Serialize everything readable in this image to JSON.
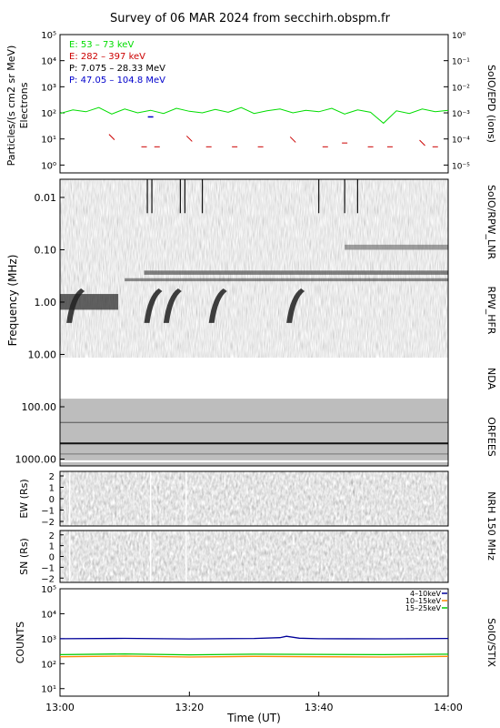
{
  "chart_data": [
    {
      "type": "line",
      "panel": "SoIO/EPD",
      "title": "Survey of 06 MAR 2024 from secchirh.obspm.fr",
      "ylabel_left": "Particles/(s cm2 sr MeV)",
      "ylabel_left2": "Electrons",
      "ylabel_right": "SoIO/EPD  (ions)",
      "scale": "log",
      "ylim_left": [
        0.5,
        100000
      ],
      "ylim_right": [
        5e-06,
        1
      ],
      "left_ticks": [
        "10⁰",
        "10¹",
        "10²",
        "10³",
        "10⁴",
        "10⁵"
      ],
      "right_ticks": [
        "10⁻⁵",
        "10⁻⁴",
        "10⁻³",
        "10⁻²",
        "10⁻¹",
        "10⁰"
      ],
      "legend_position": "top-left",
      "series": [
        {
          "name": "E: 53 – 73 keV",
          "color": "#00dd00",
          "x": [
            "13:00",
            "13:02",
            "13:04",
            "13:06",
            "13:08",
            "13:10",
            "13:12",
            "13:14",
            "13:16",
            "13:18",
            "13:20",
            "13:22",
            "13:24",
            "13:26",
            "13:28",
            "13:30",
            "13:32",
            "13:34",
            "13:36",
            "13:38",
            "13:40",
            "13:42",
            "13:44",
            "13:46",
            "13:48",
            "13:50",
            "13:52",
            "13:54",
            "13:56",
            "13:58",
            "14:00"
          ],
          "values": [
            95,
            130,
            110,
            160,
            90,
            140,
            100,
            125,
            95,
            150,
            115,
            100,
            135,
            105,
            160,
            95,
            120,
            140,
            100,
            125,
            110,
            150,
            90,
            130,
            105,
            40,
            120,
            95,
            140,
            110,
            125
          ]
        },
        {
          "name": "E: 282 – 397 keV",
          "color": "#cc0000",
          "x": [
            "13:08",
            "13:13",
            "13:15",
            "13:20",
            "13:23",
            "13:27",
            "13:31",
            "13:36",
            "13:41",
            "13:44",
            "13:48",
            "13:51",
            "13:56",
            "13:58"
          ],
          "values": [
            15,
            5,
            5,
            13,
            5,
            5,
            5,
            12,
            5,
            7,
            5,
            5,
            9,
            5
          ]
        },
        {
          "name": "P: 7.075 – 28.33 MeV",
          "color": "#000000",
          "x": [],
          "values": []
        },
        {
          "name": "P: 47.05 – 104.8 MeV",
          "color": "#0000cc",
          "x": [
            "13:14"
          ],
          "values": [
            0.0007
          ]
        }
      ]
    },
    {
      "type": "heatmap",
      "panel": "SoIO/RPW_LNR / RPW_HFR / NDA / ORFEES",
      "ylabel": "Frequency  (MHz)",
      "scale": "log",
      "ylim": [
        0.0045,
        1350
      ],
      "yticks": [
        "0.01",
        "0.10",
        "1.00",
        "10.00",
        "100.00",
        "1000.00"
      ],
      "right_labels": [
        "SoIO/RPW_LNR",
        "RPW_HFR",
        "NDA",
        "ORFEES"
      ],
      "bursts_start_min": [
        1,
        13,
        16,
        23,
        35
      ]
    },
    {
      "type": "heatmap",
      "panel": "NRH EW",
      "ylabel": "EW (Rs)",
      "ylim": [
        -2.4,
        2.4
      ],
      "yticks": [
        "2",
        "1",
        "0",
        "−1",
        "−2"
      ],
      "right_label": "NRH  150  MHz"
    },
    {
      "type": "heatmap",
      "panel": "NRH SN",
      "ylabel": "SN (Rs)",
      "ylim": [
        -2.4,
        2.4
      ],
      "yticks": [
        "2",
        "1",
        "0",
        "−1",
        "−2"
      ]
    },
    {
      "type": "line",
      "panel": "SoIO/STIX",
      "ylabel": "COUNTS",
      "right_label": "SoIO/STIX",
      "scale": "log",
      "ylim": [
        5,
        100000
      ],
      "yticks": [
        "10¹",
        "10²",
        "10³",
        "10⁴",
        "10⁵"
      ],
      "xlabel": "Time (UT)",
      "xticks": [
        "13:00",
        "13:20",
        "13:40",
        "14:00"
      ],
      "legend_position": "top-right",
      "series": [
        {
          "name": "4–10keV",
          "color": "#000099",
          "x": [
            "13:00",
            "13:10",
            "13:20",
            "13:30",
            "13:34",
            "13:35",
            "13:37",
            "13:40",
            "13:50",
            "14:00"
          ],
          "values": [
            1000,
            1030,
            980,
            1020,
            1100,
            1250,
            1050,
            1000,
            990,
            1020
          ]
        },
        {
          "name": "10–15keV",
          "color": "#ff8800",
          "x": [
            "13:00",
            "13:10",
            "13:20",
            "13:30",
            "13:40",
            "13:50",
            "14:00"
          ],
          "values": [
            190,
            200,
            185,
            195,
            190,
            185,
            195
          ]
        },
        {
          "name": "15–25keV",
          "color": "#00cc00",
          "x": [
            "13:00",
            "13:10",
            "13:20",
            "13:30",
            "13:40",
            "13:50",
            "14:00"
          ],
          "values": [
            230,
            245,
            225,
            240,
            235,
            230,
            240
          ]
        }
      ]
    }
  ]
}
